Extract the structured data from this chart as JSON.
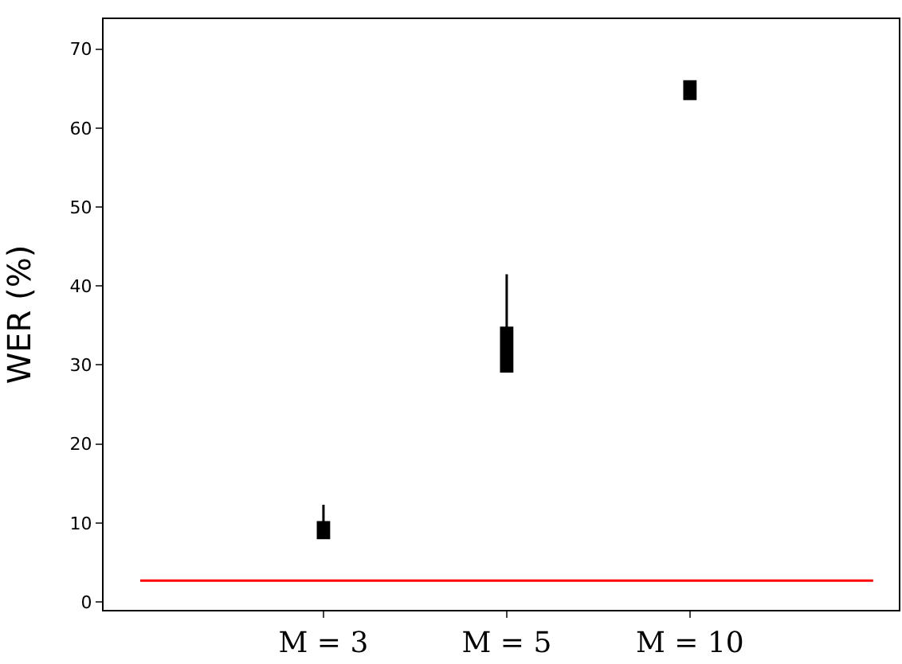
{
  "chart_data": {
    "type": "box",
    "ylabel": "WER (%)",
    "categories": [
      "M = 3",
      "M = 5",
      "M = 10"
    ],
    "boxes": [
      {
        "low": 8.1,
        "q1": 8.1,
        "median": 9.3,
        "q3": 10.1,
        "high": 12.3
      },
      {
        "low": 29.2,
        "q1": 29.2,
        "median": 32.3,
        "q3": 34.7,
        "high": 41.5
      },
      {
        "low": 63.7,
        "q1": 63.7,
        "median": 65.3,
        "q3": 65.9,
        "high": 65.9
      }
    ],
    "color": "#000000",
    "ylim": [
      -1,
      73.8
    ],
    "yticks": [
      0,
      10,
      20,
      30,
      40,
      50,
      60,
      70
    ],
    "grid": false,
    "ref_lines": [
      {
        "axis": "y",
        "value": 2.7,
        "color": "#ff0000"
      }
    ]
  }
}
